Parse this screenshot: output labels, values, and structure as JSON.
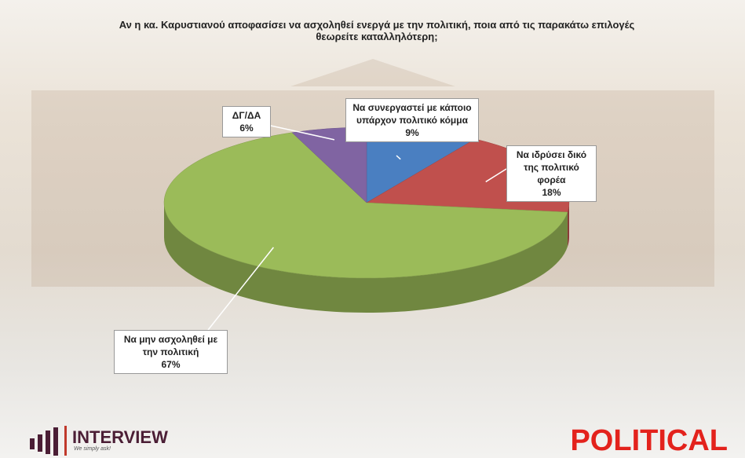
{
  "chart_data": {
    "type": "pie3d",
    "title": "Αν η κα. Καρυστιανού αποφασίσει να ασχοληθεί ενεργά με την πολιτική, ποια από τις παρακάτω επιλογές θεωρείτε καταλληλότερη;",
    "categories": [
      "Να συνεργαστεί με κάποιο υπάρχον πολιτικό κόμμα",
      "Να ιδρύσει δικό της πολιτικό φορέα",
      "Να μην ασχοληθεί με την πολιτική",
      "ΔΓ/ΔΑ"
    ],
    "values": [
      9,
      18,
      67,
      6
    ],
    "value_labels": [
      "9%",
      "18%",
      "67%",
      "6%"
    ],
    "colors": [
      "#4a7fc1",
      "#c0504d",
      "#9bbb59",
      "#8064a2"
    ]
  },
  "logos": {
    "left": "INTERVIEW",
    "left_tagline": "We simply ask!",
    "right": "POLITICAL"
  }
}
